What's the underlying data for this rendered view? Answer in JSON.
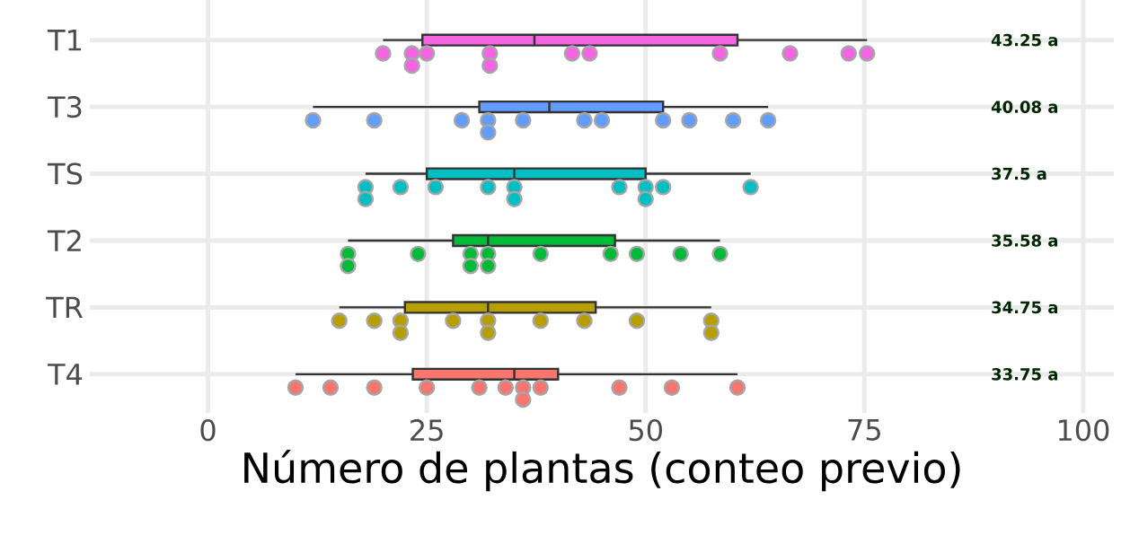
{
  "chart_data": {
    "type": "box",
    "orientation": "horizontal",
    "xlabel": "Número de plantas (conteo previo)",
    "categories": [
      "T1",
      "T3",
      "TS",
      "T2",
      "TR",
      "T4"
    ],
    "colors": [
      "#f564e3",
      "#619cff",
      "#00bfc4",
      "#00ba38",
      "#b79f00",
      "#f8766d"
    ],
    "boxes": [
      {
        "low": 20,
        "q1": 24.5,
        "median": 37.3,
        "q3": 60.5,
        "high": 75.3
      },
      {
        "low": 12,
        "q1": 31,
        "median": 39,
        "q3": 52,
        "high": 64
      },
      {
        "low": 18,
        "q1": 25,
        "median": 35,
        "q3": 50,
        "high": 62
      },
      {
        "low": 16,
        "q1": 28,
        "median": 32,
        "q3": 46.5,
        "high": 58.5
      },
      {
        "low": 15,
        "q1": 22.5,
        "median": 32,
        "q3": 44.3,
        "high": 57.5
      },
      {
        "low": 10,
        "q1": 23.4,
        "median": 35,
        "q3": 40,
        "high": 60.5
      }
    ],
    "series": [
      {
        "type": "scatter",
        "color": "#f564e3",
        "x": [
          "T1",
          "T1",
          "T1",
          "T1",
          "T1",
          "T1",
          "T1",
          "T1",
          "T1",
          "T1",
          "T1",
          "T1"
        ],
        "values": [
          20,
          23.3,
          23.3,
          25,
          32.2,
          32.2,
          41.6,
          43.6,
          58.5,
          66.5,
          73.2,
          75.3
        ]
      },
      {
        "type": "scatter",
        "color": "#619cff",
        "x": [
          "T3",
          "T3",
          "T3",
          "T3",
          "T3",
          "T3",
          "T3",
          "T3",
          "T3",
          "T3",
          "T3",
          "T3"
        ],
        "values": [
          12,
          19,
          29,
          32,
          32,
          36,
          43,
          45,
          52,
          55,
          60,
          64
        ]
      },
      {
        "type": "scatter",
        "color": "#00bfc4",
        "x": [
          "TS",
          "TS",
          "TS",
          "TS",
          "TS",
          "TS",
          "TS",
          "TS",
          "TS",
          "TS",
          "TS",
          "TS"
        ],
        "values": [
          18,
          18,
          22,
          26,
          32,
          35,
          35,
          47,
          50,
          50,
          52,
          62
        ]
      },
      {
        "type": "scatter",
        "color": "#00ba38",
        "x": [
          "T2",
          "T2",
          "T2",
          "T2",
          "T2",
          "T2",
          "T2",
          "T2",
          "T2",
          "T2",
          "T2",
          "T2"
        ],
        "values": [
          16,
          16,
          24,
          30,
          30,
          32,
          32,
          38,
          46,
          49,
          54,
          58.5
        ]
      },
      {
        "type": "scatter",
        "color": "#b79f00",
        "x": [
          "TR",
          "TR",
          "TR",
          "TR",
          "TR",
          "TR",
          "TR",
          "TR",
          "TR",
          "TR",
          "TR",
          "TR"
        ],
        "values": [
          15,
          19,
          22,
          22,
          28,
          32,
          32,
          38,
          43,
          49,
          57.5,
          57.5
        ]
      },
      {
        "type": "scatter",
        "color": "#f8766d",
        "x": [
          "T4",
          "T4",
          "T4",
          "T4",
          "T4",
          "T4",
          "T4",
          "T4",
          "T4",
          "T4",
          "T4",
          "T4"
        ],
        "values": [
          10,
          14,
          19,
          25,
          31,
          34,
          36,
          36,
          38,
          47,
          53,
          60.5
        ]
      }
    ],
    "annotations": [
      "43.25  a",
      "40.08  a",
      "37.5  a",
      "35.58  a",
      "34.75  a",
      "33.75  a"
    ],
    "xlim": [
      -13.5,
      103.5
    ],
    "xticks": [
      0,
      25,
      50,
      75,
      100
    ],
    "marker": "circle",
    "grid": true
  }
}
